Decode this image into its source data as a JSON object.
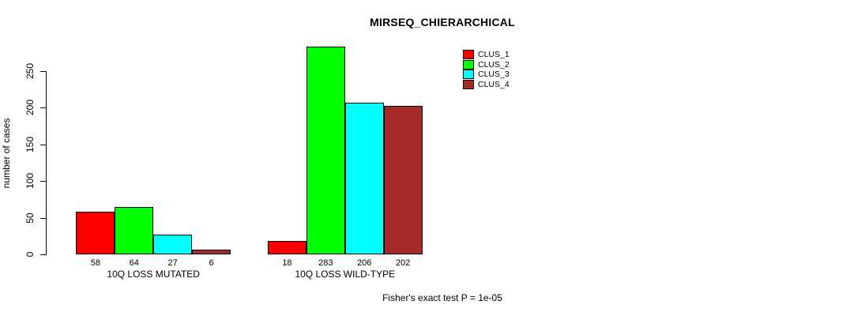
{
  "figure": {
    "title": "MIRSEQ_CHIERARCHICAL",
    "annotation": "Fisher's exact test P = 1e-05"
  },
  "chart_data": {
    "type": "bar",
    "title": "MIRSEQ_CHIERARCHICAL",
    "xlabel": "",
    "ylabel": "number of cases",
    "ylim": [
      0,
      250
    ],
    "yticks": [
      0,
      50,
      100,
      150,
      200,
      250
    ],
    "grid": false,
    "legend_position": "top-right-outside-plot",
    "background_color": "#FFFFFF",
    "bar_border_color": "#000000",
    "categories": [
      "10Q LOSS MUTATED",
      "10Q LOSS WILD-TYPE"
    ],
    "series": [
      {
        "name": "CLUS_1",
        "color": "#FF0000",
        "values": [
          58,
          18
        ]
      },
      {
        "name": "CLUS_2",
        "color": "#00FF00",
        "values": [
          64,
          283
        ]
      },
      {
        "name": "CLUS_3",
        "color": "#00FFFF",
        "values": [
          27,
          206
        ]
      },
      {
        "name": "CLUS_4",
        "color": "#A52A2A",
        "values": [
          6,
          202
        ]
      }
    ],
    "bar_value_labels": [
      [
        58,
        64,
        27,
        6
      ],
      [
        18,
        283,
        206,
        202
      ]
    ],
    "annotation": "Fisher's exact test P = 1e-05"
  }
}
